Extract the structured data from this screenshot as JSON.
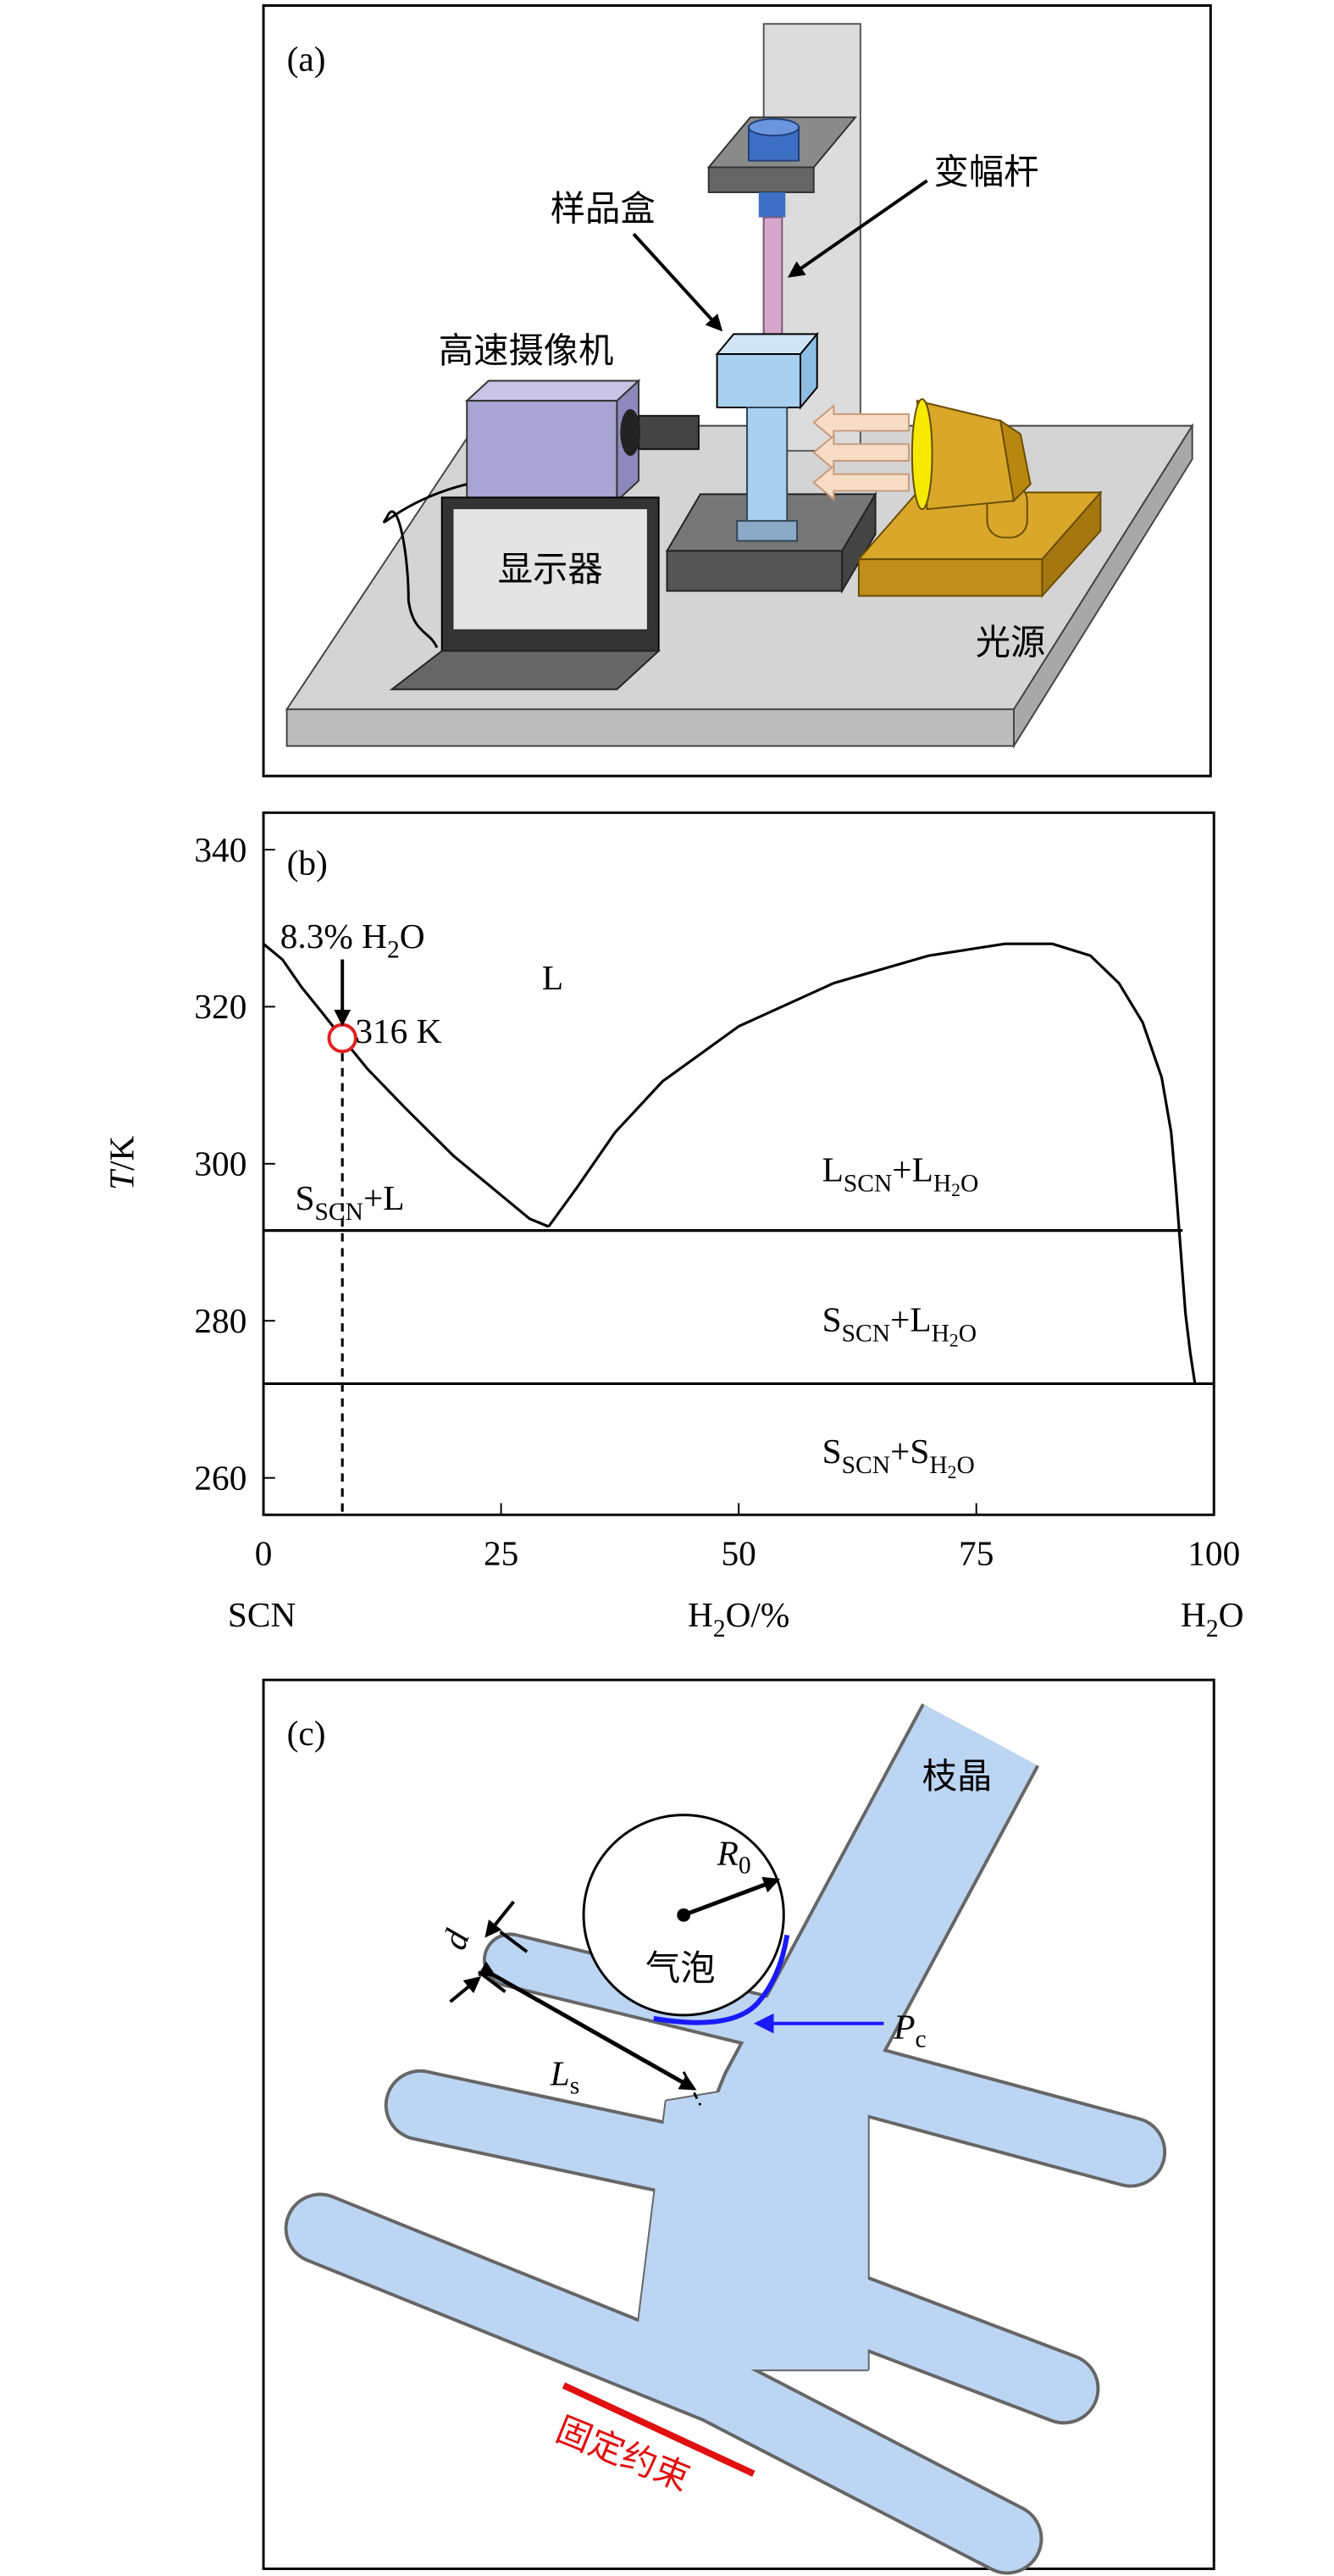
{
  "panel_a": {
    "label": "(a)",
    "horn": "变幅杆",
    "sample_box": "样品盒",
    "camera": "高速摄像机",
    "monitor": "显示器",
    "light": "光源"
  },
  "chart_data": {
    "type": "line",
    "panel_label": "(b)",
    "xlim": [
      0,
      100
    ],
    "xticks": [
      0,
      25,
      50,
      75,
      100
    ],
    "ylim": [
      255.3,
      344.7
    ],
    "yticks": [
      260,
      280,
      300,
      320,
      340
    ],
    "x_label": {
      "parts": [
        {
          "t": "H"
        },
        {
          "t": "2",
          "sub": true
        },
        {
          "t": "O/%"
        }
      ]
    },
    "x_end_labels": [
      {
        "parts": [
          {
            "t": "SCN"
          }
        ]
      },
      {
        "parts": [
          {
            "t": "H"
          },
          {
            "t": "2",
            "sub": true
          },
          {
            "t": "O"
          }
        ]
      }
    ],
    "y_label": {
      "parts": [
        {
          "t": "T",
          "italic": true
        },
        {
          "t": "/K"
        }
      ]
    },
    "series": [
      {
        "color": "#000000",
        "x": [
          0,
          2,
          4,
          6,
          8.3,
          11,
          15,
          20,
          25,
          28,
          30
        ],
        "values": [
          328,
          326,
          322.5,
          319.5,
          316,
          312,
          307,
          301,
          296,
          293,
          292
        ]
      },
      {
        "color": "#000000",
        "x": [
          30,
          33,
          37,
          42,
          50,
          60,
          70,
          78,
          83,
          87,
          90,
          92.5,
          94.5,
          95.5,
          96,
          96.5,
          97,
          97.5,
          98
        ],
        "values": [
          292,
          297,
          304,
          310.5,
          317.5,
          323,
          326.5,
          328,
          328,
          326.5,
          323,
          318,
          311,
          304,
          297,
          289,
          281,
          276,
          272
        ]
      },
      {
        "color": "#000000",
        "x": [
          0,
          96.7
        ],
        "values": [
          291.5,
          291.5
        ]
      },
      {
        "color": "#000000",
        "x": [
          0,
          100
        ],
        "values": [
          272,
          272
        ]
      },
      {
        "color": "#000000",
        "dash": true,
        "x": [
          8.3,
          8.3
        ],
        "values": [
          316,
          255.3
        ]
      }
    ],
    "markers": [
      {
        "x": 8.3,
        "y": 316,
        "color": "#e02020"
      }
    ],
    "annotations": [
      {
        "parts": [
          {
            "t": "8.3% H"
          },
          {
            "t": "2",
            "sub": true
          },
          {
            "t": "O"
          }
        ]
      },
      {
        "parts": [
          {
            "t": "316 K"
          }
        ]
      },
      {
        "parts": [
          {
            "t": "L"
          }
        ]
      },
      {
        "parts": [
          {
            "t": "S"
          },
          {
            "t": "SCN",
            "sub": true
          },
          {
            "t": "+L"
          }
        ]
      },
      {
        "parts": [
          {
            "t": "L"
          },
          {
            "t": "SCN",
            "sub": true
          },
          {
            "t": "+L"
          },
          {
            "t": "H",
            "sub": true
          },
          {
            "t": "2",
            "sub2": true
          },
          {
            "t": "O",
            "sub": true
          }
        ]
      },
      {
        "parts": [
          {
            "t": "S"
          },
          {
            "t": "SCN",
            "sub": true
          },
          {
            "t": "+L"
          },
          {
            "t": "H",
            "sub": true
          },
          {
            "t": "2",
            "sub2": true
          },
          {
            "t": "O",
            "sub": true
          }
        ]
      },
      {
        "parts": [
          {
            "t": "S"
          },
          {
            "t": "SCN",
            "sub": true
          },
          {
            "t": "+S"
          },
          {
            "t": "H",
            "sub": true
          },
          {
            "t": "2",
            "sub2": true
          },
          {
            "t": "O",
            "sub": true
          }
        ]
      }
    ]
  },
  "panel_c": {
    "label": "(c)",
    "dendrite": "枝晶",
    "bubble": "气泡",
    "constraint": "固定约束",
    "radius": {
      "symbol": "R",
      "sub": "0"
    },
    "spacing": {
      "symbol": "d"
    },
    "length": {
      "symbol": "L",
      "sub": "s"
    },
    "pressure": {
      "symbol": "P",
      "sub": "c"
    }
  }
}
